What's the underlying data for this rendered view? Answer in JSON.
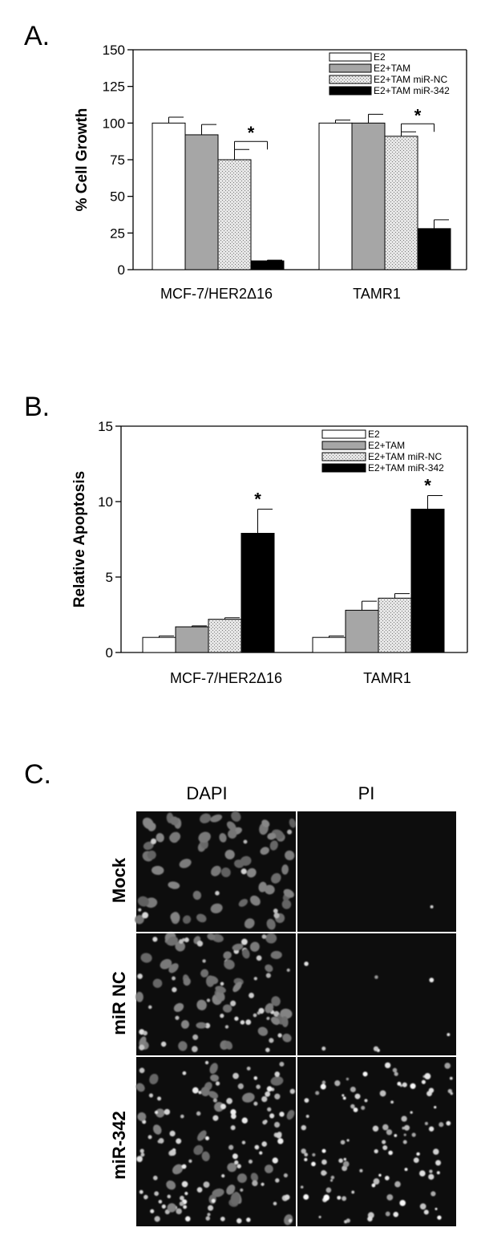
{
  "chart_data": [
    {
      "panel": "A.",
      "type": "bar",
      "ylabel": "% Cell Growth",
      "ylim": [
        0,
        150
      ],
      "yticks": [
        0,
        25,
        50,
        75,
        100,
        125,
        150
      ],
      "categories": [
        "MCF-7/HER2Δ16",
        "TAMR1"
      ],
      "series": [
        {
          "name": "E2",
          "values": [
            100,
            100
          ],
          "errors": [
            4,
            2
          ],
          "fill": "white"
        },
        {
          "name": "E2+TAM",
          "values": [
            92,
            100
          ],
          "errors": [
            7,
            6
          ],
          "fill": "gray"
        },
        {
          "name": "E2+TAM miR-NC",
          "values": [
            75,
            91
          ],
          "errors": [
            7,
            3
          ],
          "fill": "dotted"
        },
        {
          "name": "E2+TAM miR-342",
          "values": [
            6,
            28
          ],
          "errors": [
            0.5,
            6
          ],
          "fill": "black"
        }
      ],
      "significance": [
        {
          "label": "*",
          "category": 0,
          "from_series": 2,
          "to_series": 3
        },
        {
          "label": "*",
          "category": 1,
          "from_series": 2,
          "to_series": 3
        }
      ],
      "legend": "top-right"
    },
    {
      "panel": "B.",
      "type": "bar",
      "ylabel": "Relative Apoptosis",
      "ylim": [
        0,
        15
      ],
      "yticks": [
        0,
        5,
        10,
        15
      ],
      "categories": [
        "MCF-7/HER2Δ16",
        "TAMR1"
      ],
      "series": [
        {
          "name": "E2",
          "values": [
            1.0,
            1.0
          ],
          "errors": [
            0.1,
            0.1
          ],
          "fill": "white"
        },
        {
          "name": "E2+TAM",
          "values": [
            1.7,
            2.8
          ],
          "errors": [
            0.06,
            0.6
          ],
          "fill": "gray"
        },
        {
          "name": "E2+TAM miR-NC",
          "values": [
            2.2,
            3.6
          ],
          "errors": [
            0.1,
            0.3
          ],
          "fill": "dotted"
        },
        {
          "name": "E2+TAM miR-342",
          "values": [
            7.9,
            9.5
          ],
          "errors": [
            1.6,
            0.9
          ],
          "fill": "black"
        }
      ],
      "significance": [
        {
          "label": "*",
          "category": 0,
          "series": 3
        },
        {
          "label": "*",
          "category": 1,
          "series": 3
        }
      ],
      "legend": "top-right"
    }
  ],
  "micrographs": {
    "panel": "C.",
    "columns": [
      "DAPI",
      "PI"
    ],
    "rows": [
      "Mock",
      "miR NC",
      "miR-342"
    ]
  }
}
